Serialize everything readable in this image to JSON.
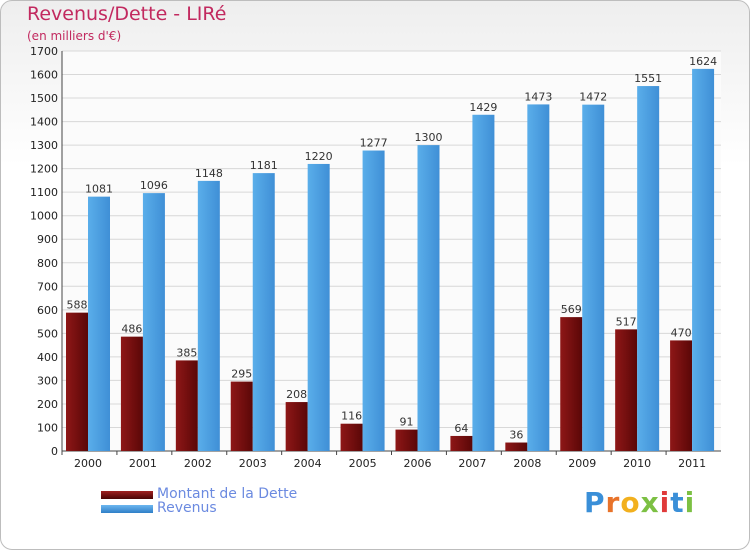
{
  "chart_title": "Revenus/Dette - LIRé",
  "chart_subtitle": "(en milliers d'€)",
  "colors": {
    "dette": "#6b0a0a",
    "revenus": "#4f9fe0",
    "title": "#c2295f",
    "legend_text": "#6b8ae0"
  },
  "legend": {
    "items": [
      {
        "label": "Montant de la Dette",
        "color": "#6b0a0a"
      },
      {
        "label": "Revenus",
        "color": "#4f9fe0"
      }
    ]
  },
  "logo": {
    "text": "Proxiti"
  },
  "chart_data": {
    "type": "bar",
    "title": "Revenus/Dette - LIRé",
    "subtitle": "(en milliers d'€)",
    "categories": [
      "2000",
      "2001",
      "2002",
      "2003",
      "2004",
      "2005",
      "2006",
      "2007",
      "2008",
      "2009",
      "2010",
      "2011"
    ],
    "series": [
      {
        "name": "Montant de la Dette",
        "values": [
          588,
          486,
          385,
          295,
          208,
          116,
          91,
          64,
          36,
          569,
          517,
          470
        ]
      },
      {
        "name": "Revenus",
        "values": [
          1081,
          1096,
          1148,
          1181,
          1220,
          1277,
          1300,
          1429,
          1473,
          1472,
          1551,
          1624
        ]
      }
    ],
    "ylim": [
      0,
      1700
    ],
    "yticks": [
      0,
      100,
      200,
      300,
      400,
      500,
      600,
      700,
      800,
      900,
      1000,
      1100,
      1200,
      1300,
      1400,
      1500,
      1600,
      1700
    ],
    "grid": true,
    "legend_position": "bottom-left"
  }
}
